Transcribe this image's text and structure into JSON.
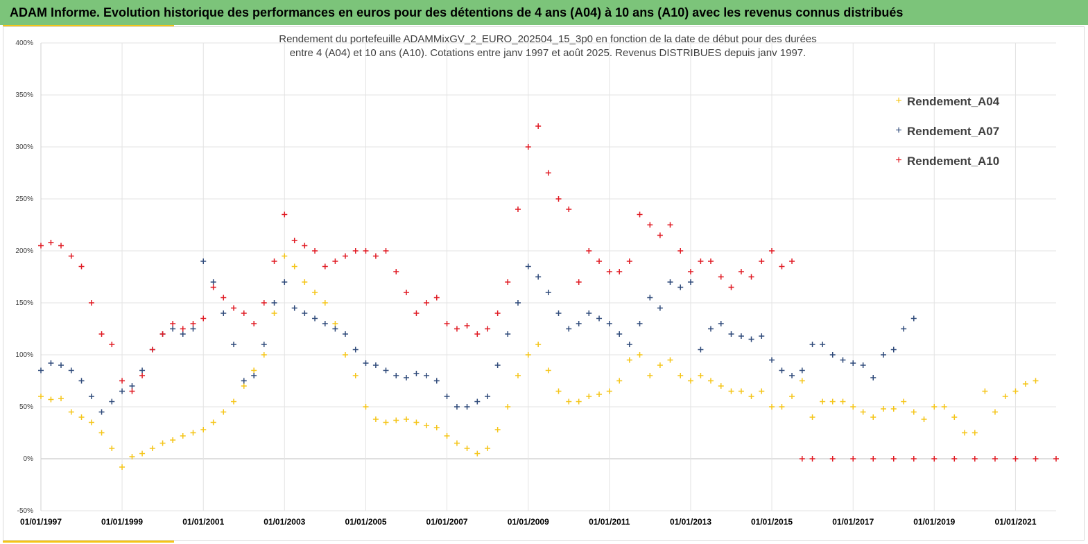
{
  "header": {
    "banner_title": "ADAM Informe. Evolution historique des performances en euros pour des détentions de 4 ans (A04) à 10 ans (A10) avec les revenus connus distribués"
  },
  "colors": {
    "banner_bg": "#7cc47a",
    "accent": "#f5c518",
    "A04": "#f5c518",
    "A07": "#2f4a7a",
    "A10": "#e01b24"
  },
  "chart_data": {
    "type": "scatter",
    "marker": "plus",
    "title_lines": [
      "Rendement du portefeuille ADAMMixGV_2_EURO_202504_15_3p0 en fonction de la date de début pour des durées",
      "entre 4 (A04) et 10 ans (A10). Cotations entre janv 1997 et août 2025. Revenus DISTRIBUES depuis janv 1997."
    ],
    "xlabel": "",
    "ylabel": "",
    "x_range": [
      "1997-01-01",
      "2022-01-01"
    ],
    "y_range": [
      -50,
      400
    ],
    "y_ticks": [
      "-50%",
      "0%",
      "50%",
      "100%",
      "150%",
      "200%",
      "250%",
      "300%",
      "350%",
      "400%"
    ],
    "x_ticks": [
      "01/01/1997",
      "01/01/1999",
      "01/01/2001",
      "01/01/2003",
      "01/01/2005",
      "01/01/2007",
      "01/01/2009",
      "01/01/2011",
      "01/01/2013",
      "01/01/2015",
      "01/01/2017",
      "01/01/2019",
      "01/01/2021"
    ],
    "grid": true,
    "legend_position": "top-right",
    "series": [
      {
        "name": "Rendement_A04",
        "color": "#f5c518",
        "points": [
          [
            "1997-01-01",
            60
          ],
          [
            "1997-04-01",
            57
          ],
          [
            "1997-07-01",
            58
          ],
          [
            "1997-10-01",
            45
          ],
          [
            "1998-01-01",
            40
          ],
          [
            "1998-04-01",
            35
          ],
          [
            "1998-07-01",
            25
          ],
          [
            "1998-10-01",
            10
          ],
          [
            "1999-01-01",
            -8
          ],
          [
            "1999-04-01",
            2
          ],
          [
            "1999-07-01",
            5
          ],
          [
            "1999-10-01",
            10
          ],
          [
            "2000-01-01",
            15
          ],
          [
            "2000-04-01",
            18
          ],
          [
            "2000-07-01",
            22
          ],
          [
            "2000-10-01",
            25
          ],
          [
            "2001-01-01",
            28
          ],
          [
            "2001-04-01",
            35
          ],
          [
            "2001-07-01",
            45
          ],
          [
            "2001-10-01",
            55
          ],
          [
            "2002-01-01",
            70
          ],
          [
            "2002-04-01",
            85
          ],
          [
            "2002-07-01",
            100
          ],
          [
            "2002-10-01",
            140
          ],
          [
            "2003-01-01",
            195
          ],
          [
            "2003-04-01",
            185
          ],
          [
            "2003-07-01",
            170
          ],
          [
            "2003-10-01",
            160
          ],
          [
            "2004-01-01",
            150
          ],
          [
            "2004-04-01",
            130
          ],
          [
            "2004-07-01",
            100
          ],
          [
            "2004-10-01",
            80
          ],
          [
            "2005-01-01",
            50
          ],
          [
            "2005-04-01",
            38
          ],
          [
            "2005-07-01",
            35
          ],
          [
            "2005-10-01",
            37
          ],
          [
            "2006-01-01",
            38
          ],
          [
            "2006-04-01",
            35
          ],
          [
            "2006-07-01",
            32
          ],
          [
            "2006-10-01",
            30
          ],
          [
            "2007-01-01",
            22
          ],
          [
            "2007-04-01",
            15
          ],
          [
            "2007-07-01",
            10
          ],
          [
            "2007-10-01",
            5
          ],
          [
            "2008-01-01",
            10
          ],
          [
            "2008-04-01",
            28
          ],
          [
            "2008-07-01",
            50
          ],
          [
            "2008-10-01",
            80
          ],
          [
            "2009-01-01",
            100
          ],
          [
            "2009-04-01",
            110
          ],
          [
            "2009-07-01",
            85
          ],
          [
            "2009-10-01",
            65
          ],
          [
            "2010-01-01",
            55
          ],
          [
            "2010-04-01",
            55
          ],
          [
            "2010-07-01",
            60
          ],
          [
            "2010-10-01",
            62
          ],
          [
            "2011-01-01",
            65
          ],
          [
            "2011-04-01",
            75
          ],
          [
            "2011-07-01",
            95
          ],
          [
            "2011-10-01",
            100
          ],
          [
            "2012-01-01",
            80
          ],
          [
            "2012-04-01",
            90
          ],
          [
            "2012-07-01",
            95
          ],
          [
            "2012-10-01",
            80
          ],
          [
            "2013-01-01",
            75
          ],
          [
            "2013-04-01",
            80
          ],
          [
            "2013-07-01",
            75
          ],
          [
            "2013-10-01",
            70
          ],
          [
            "2014-01-01",
            65
          ],
          [
            "2014-04-01",
            65
          ],
          [
            "2014-07-01",
            60
          ],
          [
            "2014-10-01",
            65
          ],
          [
            "2015-01-01",
            50
          ],
          [
            "2015-04-01",
            50
          ],
          [
            "2015-07-01",
            60
          ],
          [
            "2015-10-01",
            75
          ],
          [
            "2016-01-01",
            40
          ],
          [
            "2016-04-01",
            55
          ],
          [
            "2016-07-01",
            55
          ],
          [
            "2016-10-01",
            55
          ],
          [
            "2017-01-01",
            50
          ],
          [
            "2017-04-01",
            45
          ],
          [
            "2017-07-01",
            40
          ],
          [
            "2017-10-01",
            48
          ],
          [
            "2018-01-01",
            48
          ],
          [
            "2018-04-01",
            55
          ],
          [
            "2018-07-01",
            45
          ],
          [
            "2018-10-01",
            38
          ],
          [
            "2019-01-01",
            50
          ],
          [
            "2019-04-01",
            50
          ],
          [
            "2019-07-01",
            40
          ],
          [
            "2019-10-01",
            25
          ],
          [
            "2020-01-01",
            25
          ],
          [
            "2020-04-01",
            65
          ],
          [
            "2020-07-01",
            45
          ],
          [
            "2020-10-01",
            60
          ],
          [
            "2021-01-01",
            65
          ],
          [
            "2021-04-01",
            72
          ],
          [
            "2021-07-01",
            75
          ]
        ]
      },
      {
        "name": "Rendement_A07",
        "color": "#2f4a7a",
        "points": [
          [
            "1997-01-01",
            85
          ],
          [
            "1997-04-01",
            92
          ],
          [
            "1997-07-01",
            90
          ],
          [
            "1997-10-01",
            85
          ],
          [
            "1998-01-01",
            75
          ],
          [
            "1998-04-01",
            60
          ],
          [
            "1998-07-01",
            45
          ],
          [
            "1998-10-01",
            55
          ],
          [
            "1999-01-01",
            65
          ],
          [
            "1999-04-01",
            70
          ],
          [
            "1999-07-01",
            85
          ],
          [
            "1999-10-01",
            105
          ],
          [
            "2000-01-01",
            120
          ],
          [
            "2000-04-01",
            125
          ],
          [
            "2000-07-01",
            120
          ],
          [
            "2000-10-01",
            125
          ],
          [
            "2001-01-01",
            190
          ],
          [
            "2001-04-01",
            170
          ],
          [
            "2001-07-01",
            140
          ],
          [
            "2001-10-01",
            110
          ],
          [
            "2002-01-01",
            75
          ],
          [
            "2002-04-01",
            80
          ],
          [
            "2002-07-01",
            110
          ],
          [
            "2002-10-01",
            150
          ],
          [
            "2003-01-01",
            170
          ],
          [
            "2003-04-01",
            145
          ],
          [
            "2003-07-01",
            140
          ],
          [
            "2003-10-01",
            135
          ],
          [
            "2004-01-01",
            130
          ],
          [
            "2004-04-01",
            125
          ],
          [
            "2004-07-01",
            120
          ],
          [
            "2004-10-01",
            105
          ],
          [
            "2005-01-01",
            92
          ],
          [
            "2005-04-01",
            90
          ],
          [
            "2005-07-01",
            85
          ],
          [
            "2005-10-01",
            80
          ],
          [
            "2006-01-01",
            78
          ],
          [
            "2006-04-01",
            82
          ],
          [
            "2006-07-01",
            80
          ],
          [
            "2006-10-01",
            75
          ],
          [
            "2007-01-01",
            60
          ],
          [
            "2007-04-01",
            50
          ],
          [
            "2007-07-01",
            50
          ],
          [
            "2007-10-01",
            55
          ],
          [
            "2008-01-01",
            60
          ],
          [
            "2008-04-01",
            90
          ],
          [
            "2008-07-01",
            120
          ],
          [
            "2008-10-01",
            150
          ],
          [
            "2009-01-01",
            185
          ],
          [
            "2009-04-01",
            175
          ],
          [
            "2009-07-01",
            160
          ],
          [
            "2009-10-01",
            140
          ],
          [
            "2010-01-01",
            125
          ],
          [
            "2010-04-01",
            130
          ],
          [
            "2010-07-01",
            140
          ],
          [
            "2010-10-01",
            135
          ],
          [
            "2011-01-01",
            130
          ],
          [
            "2011-04-01",
            120
          ],
          [
            "2011-07-01",
            110
          ],
          [
            "2011-10-01",
            130
          ],
          [
            "2012-01-01",
            155
          ],
          [
            "2012-04-01",
            145
          ],
          [
            "2012-07-01",
            170
          ],
          [
            "2012-10-01",
            165
          ],
          [
            "2013-01-01",
            170
          ],
          [
            "2013-04-01",
            105
          ],
          [
            "2013-07-01",
            125
          ],
          [
            "2013-10-01",
            130
          ],
          [
            "2014-01-01",
            120
          ],
          [
            "2014-04-01",
            118
          ],
          [
            "2014-07-01",
            115
          ],
          [
            "2014-10-01",
            118
          ],
          [
            "2015-01-01",
            95
          ],
          [
            "2015-04-01",
            85
          ],
          [
            "2015-07-01",
            80
          ],
          [
            "2015-10-01",
            85
          ],
          [
            "2016-01-01",
            110
          ],
          [
            "2016-04-01",
            110
          ],
          [
            "2016-07-01",
            100
          ],
          [
            "2016-10-01",
            95
          ],
          [
            "2017-01-01",
            92
          ],
          [
            "2017-04-01",
            90
          ],
          [
            "2017-07-01",
            78
          ],
          [
            "2017-10-01",
            100
          ],
          [
            "2018-01-01",
            105
          ],
          [
            "2018-04-01",
            125
          ],
          [
            "2018-07-01",
            135
          ]
        ]
      },
      {
        "name": "Rendement_A10",
        "color": "#e01b24",
        "points": [
          [
            "1997-01-01",
            205
          ],
          [
            "1997-04-01",
            208
          ],
          [
            "1997-07-01",
            205
          ],
          [
            "1997-10-01",
            195
          ],
          [
            "1998-01-01",
            185
          ],
          [
            "1998-04-01",
            150
          ],
          [
            "1998-07-01",
            120
          ],
          [
            "1998-10-01",
            110
          ],
          [
            "1999-01-01",
            75
          ],
          [
            "1999-04-01",
            65
          ],
          [
            "1999-07-01",
            80
          ],
          [
            "1999-10-01",
            105
          ],
          [
            "2000-01-01",
            120
          ],
          [
            "2000-04-01",
            130
          ],
          [
            "2000-07-01",
            125
          ],
          [
            "2000-10-01",
            130
          ],
          [
            "2001-01-01",
            135
          ],
          [
            "2001-04-01",
            165
          ],
          [
            "2001-07-01",
            155
          ],
          [
            "2001-10-01",
            145
          ],
          [
            "2002-01-01",
            140
          ],
          [
            "2002-04-01",
            130
          ],
          [
            "2002-07-01",
            150
          ],
          [
            "2002-10-01",
            190
          ],
          [
            "2003-01-01",
            235
          ],
          [
            "2003-04-01",
            210
          ],
          [
            "2003-07-01",
            205
          ],
          [
            "2003-10-01",
            200
          ],
          [
            "2004-01-01",
            185
          ],
          [
            "2004-04-01",
            190
          ],
          [
            "2004-07-01",
            195
          ],
          [
            "2004-10-01",
            200
          ],
          [
            "2005-01-01",
            200
          ],
          [
            "2005-04-01",
            195
          ],
          [
            "2005-07-01",
            200
          ],
          [
            "2005-10-01",
            180
          ],
          [
            "2006-01-01",
            160
          ],
          [
            "2006-04-01",
            140
          ],
          [
            "2006-07-01",
            150
          ],
          [
            "2006-10-01",
            155
          ],
          [
            "2007-01-01",
            130
          ],
          [
            "2007-04-01",
            125
          ],
          [
            "2007-07-01",
            128
          ],
          [
            "2007-10-01",
            120
          ],
          [
            "2008-01-01",
            125
          ],
          [
            "2008-04-01",
            140
          ],
          [
            "2008-07-01",
            170
          ],
          [
            "2008-10-01",
            240
          ],
          [
            "2009-01-01",
            300
          ],
          [
            "2009-04-01",
            320
          ],
          [
            "2009-07-01",
            275
          ],
          [
            "2009-10-01",
            250
          ],
          [
            "2010-01-01",
            240
          ],
          [
            "2010-04-01",
            170
          ],
          [
            "2010-07-01",
            200
          ],
          [
            "2010-10-01",
            190
          ],
          [
            "2011-01-01",
            180
          ],
          [
            "2011-04-01",
            180
          ],
          [
            "2011-07-01",
            190
          ],
          [
            "2011-10-01",
            235
          ],
          [
            "2012-01-01",
            225
          ],
          [
            "2012-04-01",
            215
          ],
          [
            "2012-07-01",
            225
          ],
          [
            "2012-10-01",
            200
          ],
          [
            "2013-01-01",
            180
          ],
          [
            "2013-04-01",
            190
          ],
          [
            "2013-07-01",
            190
          ],
          [
            "2013-10-01",
            175
          ],
          [
            "2014-01-01",
            165
          ],
          [
            "2014-04-01",
            180
          ],
          [
            "2014-07-01",
            175
          ],
          [
            "2014-10-01",
            190
          ],
          [
            "2015-01-01",
            200
          ],
          [
            "2015-04-01",
            185
          ],
          [
            "2015-07-01",
            190
          ],
          [
            "2015-10-01",
            0
          ],
          [
            "2016-01-01",
            0
          ],
          [
            "2016-07-01",
            0
          ],
          [
            "2017-01-01",
            0
          ],
          [
            "2017-07-01",
            0
          ],
          [
            "2018-01-01",
            0
          ],
          [
            "2018-07-01",
            0
          ],
          [
            "2019-01-01",
            0
          ],
          [
            "2019-07-01",
            0
          ],
          [
            "2020-01-01",
            0
          ],
          [
            "2020-07-01",
            0
          ],
          [
            "2021-01-01",
            0
          ],
          [
            "2021-07-01",
            0
          ],
          [
            "2022-01-01",
            0
          ]
        ]
      }
    ]
  }
}
